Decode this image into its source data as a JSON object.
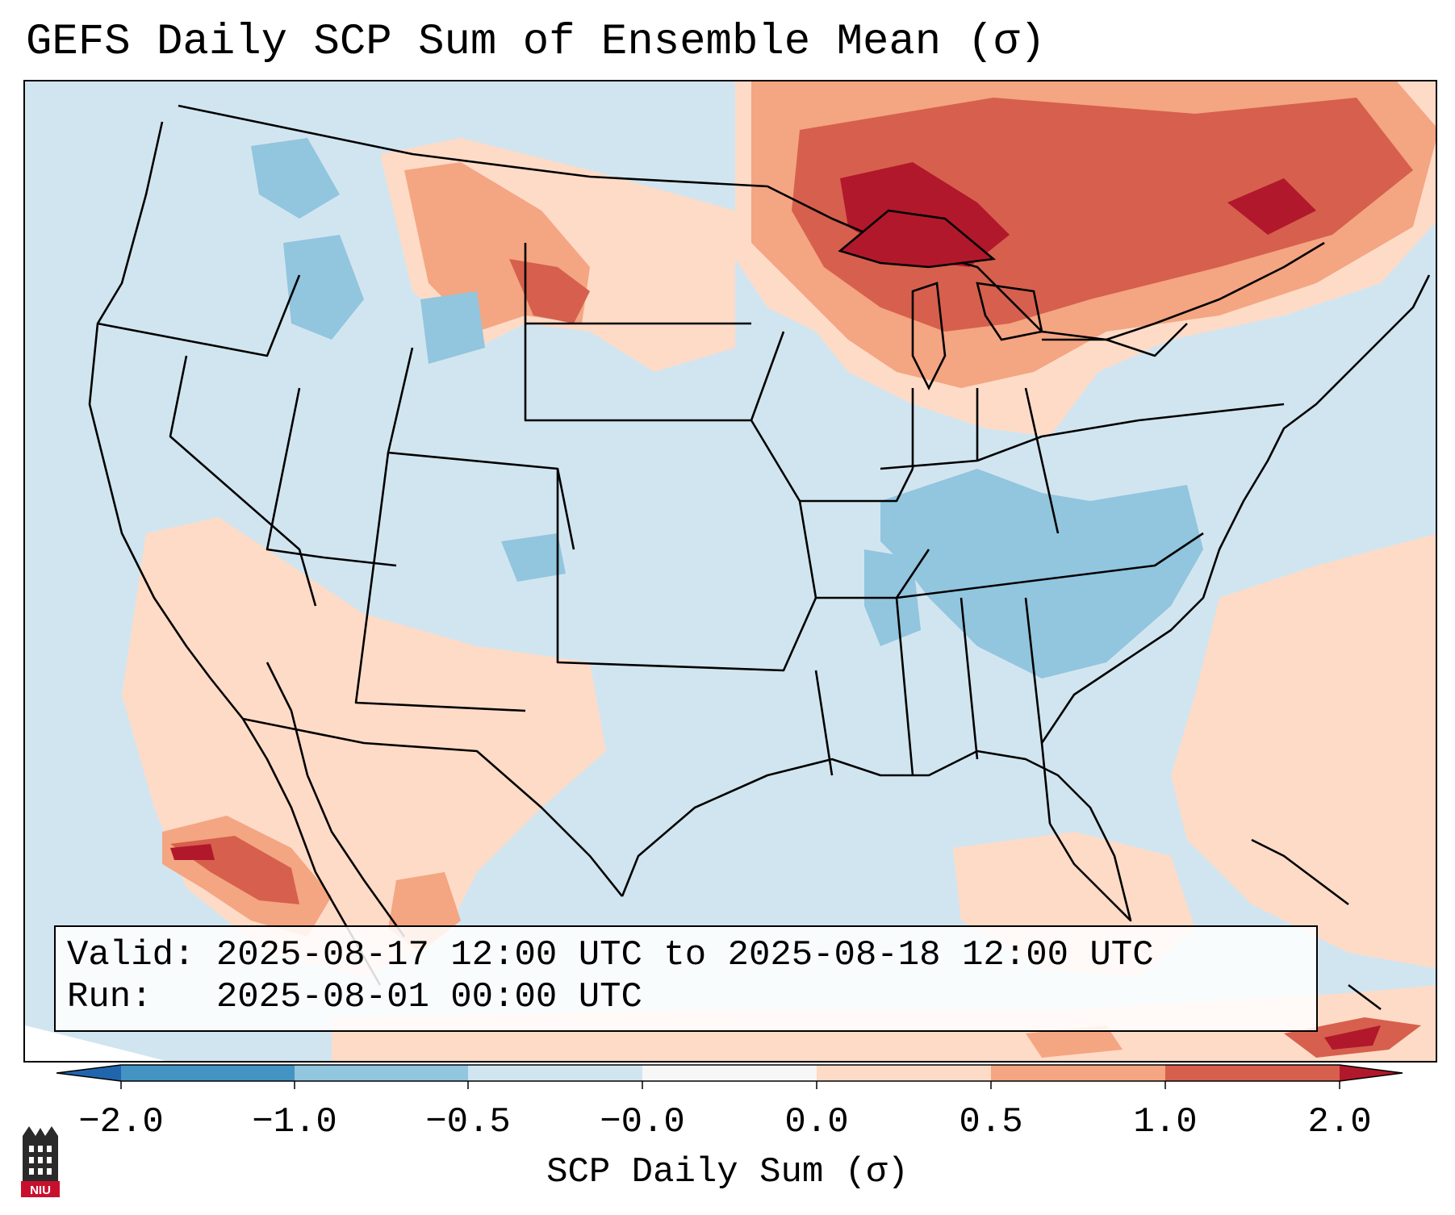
{
  "title": "GEFS Daily SCP Sum of Ensemble Mean (σ)",
  "info": {
    "valid_line": "Valid: 2025-08-17 12:00 UTC to 2025-08-18 12:00 UTC",
    "run_line": "Run:   2025-08-01 00:00 UTC"
  },
  "colorbar": {
    "label": "SCP Daily Sum (σ)",
    "ticks": [
      "−2.0",
      "−1.0",
      "−0.5",
      "−0.0",
      "0.0",
      "0.5",
      "1.0",
      "2.0"
    ],
    "bins": [
      {
        "range": "below -2.0",
        "color": "#2166ac"
      },
      {
        "range": "-2.0 to -1.0",
        "color": "#4393c3"
      },
      {
        "range": "-1.0 to -0.5",
        "color": "#92c5de"
      },
      {
        "range": "-0.5 to 0.0",
        "color": "#d1e5f0"
      },
      {
        "range": "0.0",
        "color": "#f7f7f7"
      },
      {
        "range": "0.0 to 0.5",
        "color": "#fddbc7"
      },
      {
        "range": "0.5 to 1.0",
        "color": "#f4a582"
      },
      {
        "range": "1.0 to 2.0",
        "color": "#d6604d"
      },
      {
        "range": "above 2.0",
        "color": "#b2182b"
      }
    ]
  },
  "map": {
    "background_color": "#d1e5f0",
    "anomaly_regions": [
      {
        "name": "upper-great-lakes-and-ontario",
        "level": "1.0 to 2.0+",
        "color": "#d6604d"
      },
      {
        "name": "lake-superior-core",
        "level": "above 2.0",
        "color": "#b2182b"
      },
      {
        "name": "northern-plains-and-montana",
        "level": "0.5 to 1.0",
        "color": "#f4a582"
      },
      {
        "name": "southwest-and-northern-mexico",
        "level": "0.0 to 0.5",
        "color": "#fddbc7"
      },
      {
        "name": "baja-gulf-of-california",
        "level": "1.0 to 2.0+",
        "color": "#d6604d"
      },
      {
        "name": "western-atlantic",
        "level": "0.0 to 0.5",
        "color": "#fddbc7"
      },
      {
        "name": "ohio-valley-and-carolinas",
        "level": "-1.0 to -0.5",
        "color": "#92c5de"
      },
      {
        "name": "idaho-and-wyoming",
        "level": "-1.0 to -0.5",
        "color": "#92c5de"
      },
      {
        "name": "cuba-and-caribbean",
        "level": "1.0 to 2.0+",
        "color": "#d6604d"
      }
    ]
  },
  "logo": {
    "text": "NIU"
  }
}
